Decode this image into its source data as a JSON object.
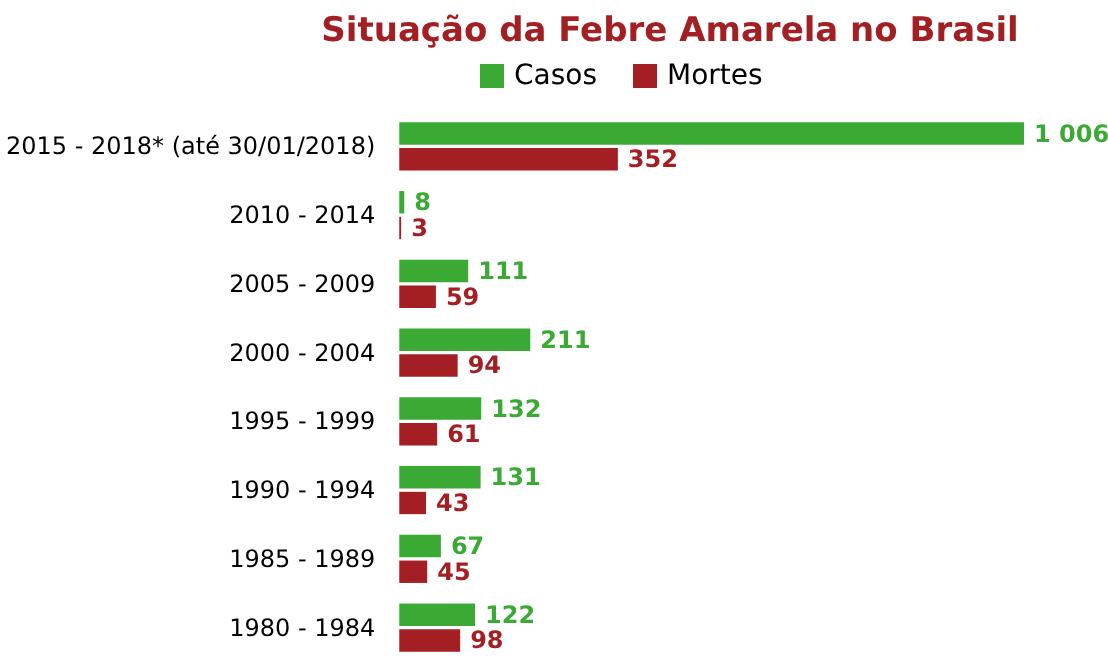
{
  "chart_data": {
    "type": "bar",
    "orientation": "horizontal",
    "title": "Situação da Febre Amarela no Brasil",
    "legend": "top",
    "categories": [
      "2015 - 2018* (até 30/01/2018)",
      "2010 - 2014",
      "2005 - 2009",
      "2000 - 2004",
      "1995 - 1999",
      "1990 - 1994",
      "1985 - 1989",
      "1980 - 1984"
    ],
    "series": [
      {
        "name": "Casos",
        "color": "#3aaa35",
        "values": [
          1006,
          8,
          111,
          211,
          132,
          131,
          67,
          122
        ],
        "value_labels": [
          "1 006",
          "8",
          "111",
          "211",
          "132",
          "131",
          "67",
          "122"
        ]
      },
      {
        "name": "Mortes",
        "color": "#a31f23",
        "values": [
          352,
          3,
          59,
          94,
          61,
          43,
          45,
          98
        ],
        "value_labels": [
          "352",
          "3",
          "59",
          "94",
          "61",
          "43",
          "45",
          "98"
        ]
      }
    ]
  }
}
